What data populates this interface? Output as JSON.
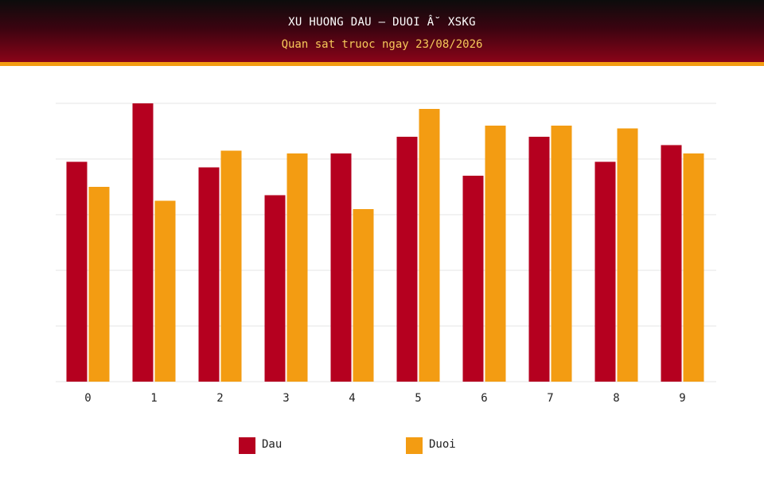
{
  "header": {
    "title": "XU HUONG DAU – DUOI Â˘ XSKG",
    "subtitle": "Quan sat truoc ngay 23/08/2026"
  },
  "colors": {
    "dau": "#b5001f",
    "duoi": "#f39c12",
    "grid": "#e6e6e6"
  },
  "chart_data": {
    "type": "bar",
    "categories": [
      "0",
      "1",
      "2",
      "3",
      "4",
      "5",
      "6",
      "7",
      "8",
      "9"
    ],
    "series": [
      {
        "name": "Dau",
        "values": [
          79,
          100,
          77,
          67,
          82,
          88,
          74,
          88,
          79,
          85
        ]
      },
      {
        "name": "Duoi",
        "values": [
          70,
          65,
          83,
          82,
          62,
          98,
          92,
          92,
          91,
          82
        ]
      }
    ],
    "ylim": [
      0,
      100
    ],
    "grid": true,
    "legend": "bottom"
  }
}
